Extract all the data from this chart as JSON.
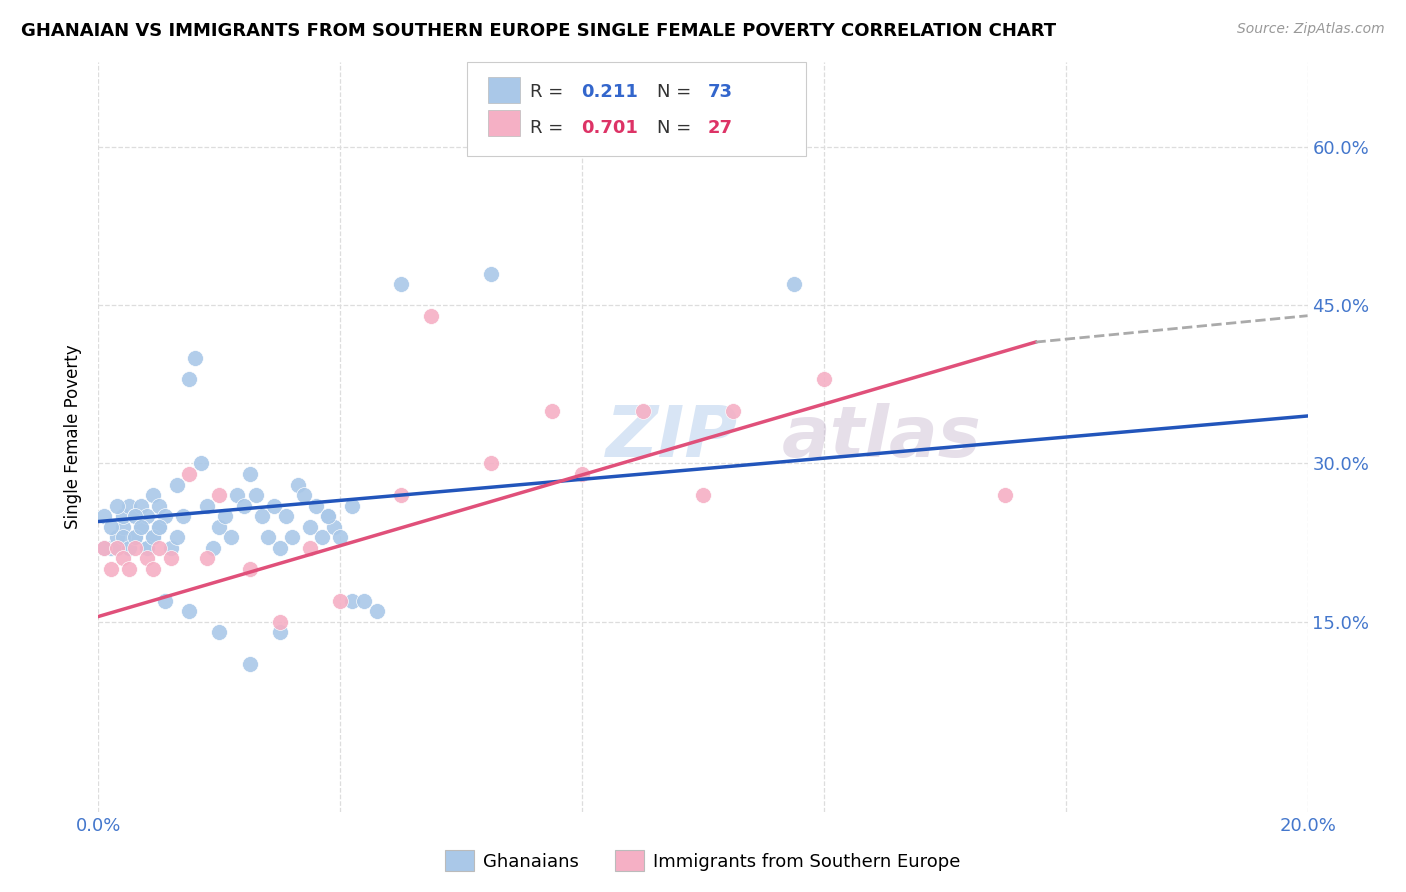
{
  "title": "GHANAIAN VS IMMIGRANTS FROM SOUTHERN EUROPE SINGLE FEMALE POVERTY CORRELATION CHART",
  "source": "Source: ZipAtlas.com",
  "ylabel": "Single Female Poverty",
  "xlim": [
    0.0,
    0.2
  ],
  "ylim": [
    -0.03,
    0.68
  ],
  "x_ticks": [
    0.0,
    0.04,
    0.08,
    0.12,
    0.16,
    0.2
  ],
  "y_ticks": [
    0.15,
    0.3,
    0.45,
    0.6
  ],
  "y_tick_labels": [
    "15.0%",
    "30.0%",
    "45.0%",
    "60.0%"
  ],
  "blue_scatter_color": "#aac8e8",
  "pink_scatter_color": "#f5b0c5",
  "blue_line_color": "#2255bb",
  "pink_line_color": "#e0507a",
  "dash_line_color": "#aaaaaa",
  "legend_blue_val_color": "#3366cc",
  "legend_pink_val_color": "#dd3366",
  "tick_color": "#4477cc",
  "grid_color": "#dddddd",
  "watermark_color": "#c8d8ee",
  "title_fontsize": 13,
  "tick_fontsize": 13,
  "ylabel_fontsize": 12,
  "R_blue": 0.211,
  "N_blue": 73,
  "R_pink": 0.701,
  "N_pink": 27,
  "blue_line_x0": 0.0,
  "blue_line_y0": 0.245,
  "blue_line_x1": 0.2,
  "blue_line_y1": 0.345,
  "pink_line_x0": 0.0,
  "pink_line_y0": 0.155,
  "pink_line_x1_solid": 0.155,
  "pink_line_y1_solid": 0.415,
  "pink_line_x1_dash": 0.2,
  "pink_line_y1_dash": 0.44,
  "blue_x": [
    0.002,
    0.003,
    0.004,
    0.004,
    0.005,
    0.005,
    0.006,
    0.006,
    0.007,
    0.007,
    0.008,
    0.008,
    0.009,
    0.009,
    0.01,
    0.01,
    0.011,
    0.012,
    0.013,
    0.013,
    0.014,
    0.015,
    0.016,
    0.017,
    0.018,
    0.019,
    0.02,
    0.021,
    0.022,
    0.023,
    0.024,
    0.025,
    0.026,
    0.027,
    0.028,
    0.029,
    0.03,
    0.031,
    0.032,
    0.033,
    0.034,
    0.035,
    0.036,
    0.037,
    0.038,
    0.039,
    0.04,
    0.042,
    0.044,
    0.046,
    0.001,
    0.001,
    0.002,
    0.003,
    0.003,
    0.004,
    0.005,
    0.006,
    0.006,
    0.007,
    0.008,
    0.009,
    0.01,
    0.011,
    0.015,
    0.02,
    0.025,
    0.03,
    0.038,
    0.042,
    0.05,
    0.065,
    0.115
  ],
  "blue_y": [
    0.22,
    0.23,
    0.24,
    0.25,
    0.22,
    0.26,
    0.23,
    0.25,
    0.24,
    0.26,
    0.22,
    0.25,
    0.23,
    0.27,
    0.24,
    0.26,
    0.25,
    0.22,
    0.23,
    0.28,
    0.25,
    0.38,
    0.4,
    0.3,
    0.26,
    0.22,
    0.24,
    0.25,
    0.23,
    0.27,
    0.26,
    0.29,
    0.27,
    0.25,
    0.23,
    0.26,
    0.22,
    0.25,
    0.23,
    0.28,
    0.27,
    0.24,
    0.26,
    0.23,
    0.25,
    0.24,
    0.23,
    0.17,
    0.17,
    0.16,
    0.22,
    0.25,
    0.24,
    0.22,
    0.26,
    0.23,
    0.22,
    0.23,
    0.25,
    0.24,
    0.22,
    0.23,
    0.24,
    0.17,
    0.16,
    0.14,
    0.11,
    0.14,
    0.25,
    0.26,
    0.47,
    0.48,
    0.47
  ],
  "pink_x": [
    0.001,
    0.002,
    0.003,
    0.004,
    0.005,
    0.006,
    0.008,
    0.009,
    0.01,
    0.012,
    0.015,
    0.018,
    0.02,
    0.025,
    0.03,
    0.035,
    0.04,
    0.05,
    0.055,
    0.065,
    0.075,
    0.08,
    0.09,
    0.1,
    0.105,
    0.12,
    0.15
  ],
  "pink_y": [
    0.22,
    0.2,
    0.22,
    0.21,
    0.2,
    0.22,
    0.21,
    0.2,
    0.22,
    0.21,
    0.29,
    0.21,
    0.27,
    0.2,
    0.15,
    0.22,
    0.17,
    0.27,
    0.44,
    0.3,
    0.35,
    0.29,
    0.35,
    0.27,
    0.35,
    0.38,
    0.27
  ]
}
